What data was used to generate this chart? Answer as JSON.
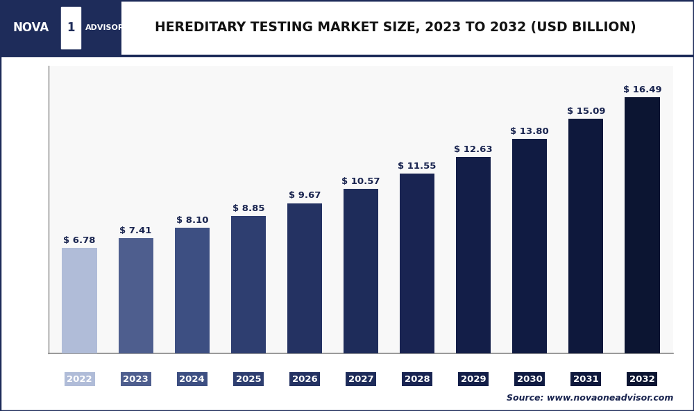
{
  "title": "HEREDITARY TESTING MARKET SIZE, 2023 TO 2032 (USD BILLION)",
  "years": [
    "2022",
    "2023",
    "2024",
    "2025",
    "2026",
    "2027",
    "2028",
    "2029",
    "2030",
    "2031",
    "2032"
  ],
  "values": [
    6.78,
    7.41,
    8.1,
    8.85,
    9.67,
    10.57,
    11.55,
    12.63,
    13.8,
    15.09,
    16.49
  ],
  "bar_colors": [
    "#b0bcd8",
    "#4e5e8e",
    "#3d4f82",
    "#2e3e70",
    "#243262",
    "#1e2c5a",
    "#192452",
    "#131e48",
    "#101b42",
    "#0e183c",
    "#0c1532"
  ],
  "tick_bg_colors": [
    "#b0bcd8",
    "#4e5e8e",
    "#3d4f82",
    "#2e3e70",
    "#243262",
    "#1e2c5a",
    "#192452",
    "#131e48",
    "#101b42",
    "#0e183c",
    "#0c1532"
  ],
  "background_color": "#ffffff",
  "plot_bg_color": "#f8f8f8",
  "grid_color": "#d0d0d0",
  "ylim": [
    0,
    18.5
  ],
  "source_text": "Source: www.novaoneadvisor.com",
  "header_bg": "#ffffff",
  "logo_bg": "#1e2c5a",
  "logo_text_color": "#ffffff",
  "border_color": "#1e2c5a",
  "title_color": "#111111",
  "label_color": "#1a2550",
  "bar_label_fontsize": 9.5,
  "tick_fontsize": 9.5
}
